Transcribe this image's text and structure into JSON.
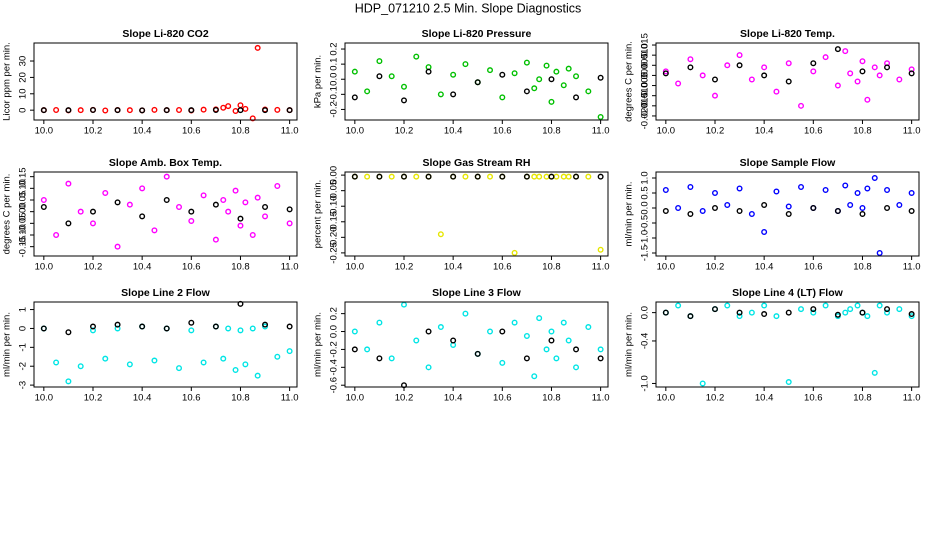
{
  "title": "HDP_071210  2.5 Min. Slope Diagnostics",
  "chart_data": [
    {
      "type": "scatter",
      "title": "Slope Li-820 CO2",
      "ylabel": "Licor ppm per min.",
      "xlim": [
        9.96,
        11.03
      ],
      "xticks": [
        {
          "value": 10,
          "label": "10.0"
        },
        10.2,
        10.4,
        10.6,
        10.8,
        {
          "value": 11,
          "label": "11.0"
        }
      ],
      "ylim": [
        -6,
        41
      ],
      "yticks": [
        0,
        10,
        20,
        30
      ],
      "series": [
        {
          "color": "#ff0000",
          "x": [
            10.0,
            10.05,
            10.1,
            10.15,
            10.2,
            10.25,
            10.3,
            10.35,
            10.4,
            10.45,
            10.5,
            10.55,
            10.6,
            10.65,
            10.7,
            10.73,
            10.75,
            10.78,
            10.8,
            10.82,
            10.85,
            10.87,
            10.9,
            10.95,
            11.0
          ],
          "values": [
            0,
            0.1,
            -0.1,
            0,
            0.2,
            -0.2,
            0.1,
            0,
            -0.1,
            0.2,
            0,
            0.1,
            -0.2,
            0.3,
            0.5,
            1.5,
            2.5,
            -0.5,
            3,
            0.8,
            -5,
            38,
            0.4,
            0.2,
            0
          ]
        },
        {
          "color": "#000000",
          "x": [
            10.0,
            10.1,
            10.2,
            10.3,
            10.4,
            10.5,
            10.6,
            10.7,
            10.8,
            10.9,
            11.0
          ],
          "values": [
            0,
            0,
            0.1,
            0,
            -0.1,
            0,
            0,
            0.1,
            0,
            0,
            0
          ]
        }
      ]
    },
    {
      "type": "scatter",
      "title": "Slope Li-820 Pressure",
      "ylabel": "kPa per min.",
      "xlim": [
        9.96,
        11.03
      ],
      "xticks": [
        {
          "value": 10,
          "label": "10.0"
        },
        10.2,
        10.4,
        10.6,
        10.8,
        {
          "value": 11,
          "label": "11.0"
        }
      ],
      "ylim": [
        -0.27,
        0.24
      ],
      "yticks": [
        -0.2,
        -0.1,
        {
          "value": 0,
          "label": "0.0"
        },
        0.1,
        0.2
      ],
      "series": [
        {
          "color": "#00c000",
          "x": [
            10.0,
            10.05,
            10.1,
            10.15,
            10.2,
            10.25,
            10.3,
            10.35,
            10.4,
            10.45,
            10.5,
            10.55,
            10.6,
            10.65,
            10.7,
            10.73,
            10.75,
            10.78,
            10.8,
            10.82,
            10.85,
            10.87,
            10.9,
            10.95,
            11.0
          ],
          "values": [
            0.05,
            -0.08,
            0.12,
            0.02,
            -0.05,
            0.15,
            0.08,
            -0.1,
            0.03,
            0.1,
            -0.02,
            0.06,
            -0.12,
            0.04,
            0.11,
            -0.06,
            0.0,
            0.09,
            -0.15,
            0.05,
            -0.04,
            0.07,
            0.02,
            -0.08,
            -0.25
          ]
        },
        {
          "color": "#000000",
          "x": [
            10.0,
            10.1,
            10.2,
            10.3,
            10.4,
            10.5,
            10.6,
            10.7,
            10.8,
            10.9,
            11.0
          ],
          "values": [
            -0.12,
            0.02,
            -0.14,
            0.05,
            -0.1,
            -0.02,
            0.03,
            -0.08,
            0.0,
            -0.12,
            0.01
          ]
        }
      ]
    },
    {
      "type": "scatter",
      "title": "Slope Li-820 Temp.",
      "ylabel": "degrees C per min.",
      "xlim": [
        9.96,
        11.03
      ],
      "xticks": [
        {
          "value": 10,
          "label": "10.0"
        },
        10.2,
        10.4,
        10.6,
        10.8,
        {
          "value": 11,
          "label": "11.0"
        }
      ],
      "ylim": [
        -0.022,
        0.016
      ],
      "yticks": [
        {
          "value": -0.02,
          "label": "-0.020"
        },
        -0.015,
        {
          "value": -0.01,
          "label": "-0.010"
        },
        -0.005,
        {
          "value": 0,
          "label": "0.000"
        },
        0.005,
        {
          "value": 0.01,
          "label": "0.010"
        },
        0.015
      ],
      "series": [
        {
          "color": "#ff00ff",
          "x": [
            10.0,
            10.05,
            10.1,
            10.15,
            10.2,
            10.25,
            10.3,
            10.35,
            10.4,
            10.45,
            10.5,
            10.55,
            10.6,
            10.65,
            10.7,
            10.73,
            10.75,
            10.78,
            10.8,
            10.82,
            10.85,
            10.87,
            10.9,
            10.95,
            11.0
          ],
          "values": [
            0.002,
            -0.004,
            0.008,
            0.0,
            -0.01,
            0.005,
            0.01,
            -0.002,
            0.004,
            -0.008,
            0.006,
            -0.015,
            0.002,
            0.009,
            -0.005,
            0.012,
            0.001,
            -0.003,
            0.007,
            -0.012,
            0.004,
            0.0,
            0.006,
            -0.002,
            0.003
          ]
        },
        {
          "color": "#000000",
          "x": [
            10.0,
            10.1,
            10.2,
            10.3,
            10.4,
            10.5,
            10.6,
            10.7,
            10.8,
            10.9,
            11.0
          ],
          "values": [
            0.001,
            0.004,
            -0.002,
            0.005,
            0.0,
            -0.003,
            0.006,
            0.013,
            0.002,
            0.004,
            0.001
          ]
        }
      ]
    },
    {
      "type": "scatter",
      "title": "Slope Amb. Box Temp.",
      "ylabel": "degrees C per min.",
      "xlim": [
        9.96,
        11.03
      ],
      "xticks": [
        {
          "value": 10,
          "label": "10.0"
        },
        10.2,
        10.4,
        10.6,
        10.8,
        {
          "value": 11,
          "label": "11.0"
        }
      ],
      "ylim": [
        -0.19,
        0.17
      ],
      "yticks": [
        -0.15,
        {
          "value": -0.1,
          "label": "-0.10"
        },
        -0.05,
        {
          "value": 0,
          "label": "0.00"
        },
        0.05,
        {
          "value": 0.1,
          "label": "0.10"
        },
        0.15
      ],
      "series": [
        {
          "color": "#ff00ff",
          "x": [
            10.0,
            10.05,
            10.1,
            10.15,
            10.2,
            10.25,
            10.3,
            10.35,
            10.4,
            10.45,
            10.5,
            10.55,
            10.6,
            10.65,
            10.7,
            10.73,
            10.75,
            10.78,
            10.8,
            10.82,
            10.85,
            10.87,
            10.9,
            10.95,
            11.0
          ],
          "values": [
            0.05,
            -0.1,
            0.12,
            0.0,
            -0.05,
            0.08,
            -0.15,
            0.03,
            0.1,
            -0.08,
            0.15,
            0.02,
            -0.04,
            0.07,
            -0.12,
            0.05,
            0.0,
            0.09,
            -0.06,
            0.04,
            -0.1,
            0.06,
            -0.02,
            0.11,
            -0.05
          ]
        },
        {
          "color": "#000000",
          "x": [
            10.0,
            10.1,
            10.2,
            10.3,
            10.4,
            10.5,
            10.6,
            10.7,
            10.8,
            10.9,
            11.0
          ],
          "values": [
            0.02,
            -0.05,
            0.0,
            0.04,
            -0.02,
            0.05,
            0.0,
            0.03,
            -0.03,
            0.02,
            0.01
          ]
        }
      ]
    },
    {
      "type": "scatter",
      "title": "Slope Gas Stream RH",
      "ylabel": "percent per min.",
      "xlim": [
        9.96,
        11.03
      ],
      "xticks": [
        {
          "value": 10,
          "label": "10.0"
        },
        10.2,
        10.4,
        10.6,
        10.8,
        {
          "value": 11,
          "label": "11.0"
        }
      ],
      "ylim": [
        -0.26,
        0.01
      ],
      "yticks": [
        -0.25,
        {
          "value": -0.2,
          "label": "-0.20"
        },
        -0.15,
        {
          "value": -0.1,
          "label": "-0.10"
        },
        -0.05,
        {
          "value": 0,
          "label": "0.00"
        }
      ],
      "series": [
        {
          "color": "#e6e600",
          "x": [
            10.0,
            10.05,
            10.1,
            10.15,
            10.2,
            10.25,
            10.3,
            10.35,
            10.4,
            10.45,
            10.5,
            10.55,
            10.6,
            10.65,
            10.7,
            10.73,
            10.75,
            10.78,
            10.8,
            10.82,
            10.85,
            10.87,
            10.9,
            10.95,
            11.0
          ],
          "values": [
            -0.005,
            -0.005,
            -0.005,
            -0.005,
            -0.005,
            -0.005,
            -0.005,
            -0.19,
            -0.005,
            -0.005,
            -0.005,
            -0.005,
            -0.005,
            -0.25,
            -0.005,
            -0.005,
            -0.005,
            -0.005,
            -0.005,
            -0.005,
            -0.005,
            -0.005,
            -0.005,
            -0.005,
            -0.24
          ]
        },
        {
          "color": "#000000",
          "x": [
            10.0,
            10.1,
            10.2,
            10.3,
            10.4,
            10.5,
            10.6,
            10.7,
            10.8,
            10.9,
            11.0
          ],
          "values": [
            -0.005,
            -0.005,
            -0.005,
            -0.005,
            -0.005,
            -0.005,
            -0.005,
            -0.005,
            -0.005,
            -0.005,
            -0.005
          ]
        }
      ]
    },
    {
      "type": "scatter",
      "title": "Slope Sample Flow",
      "ylabel": "ml/min per min.",
      "xlim": [
        9.96,
        11.03
      ],
      "xticks": [
        {
          "value": 10,
          "label": "10.0"
        },
        10.2,
        10.4,
        10.6,
        10.8,
        {
          "value": 11,
          "label": "11.0"
        }
      ],
      "ylim": [
        -1.6,
        1.2
      ],
      "yticks": [
        -1.5,
        {
          "value": -1,
          "label": "-1.0"
        },
        -0.5,
        {
          "value": 0,
          "label": "0.0"
        },
        0.5,
        {
          "value": 1,
          "label": "1.0"
        }
      ],
      "series": [
        {
          "color": "#0000ff",
          "x": [
            10.0,
            10.05,
            10.1,
            10.15,
            10.2,
            10.25,
            10.3,
            10.35,
            10.4,
            10.45,
            10.5,
            10.55,
            10.6,
            10.65,
            10.7,
            10.73,
            10.75,
            10.78,
            10.8,
            10.82,
            10.85,
            10.87,
            10.9,
            10.95,
            11.0
          ],
          "values": [
            0.6,
            0.0,
            0.7,
            -0.1,
            0.5,
            0.1,
            0.65,
            -0.2,
            -0.8,
            0.55,
            0.05,
            0.7,
            0.0,
            0.6,
            -0.1,
            0.75,
            0.1,
            0.5,
            0.0,
            0.65,
            1.0,
            -1.5,
            0.6,
            0.1,
            0.5
          ]
        },
        {
          "color": "#000000",
          "x": [
            10.0,
            10.1,
            10.2,
            10.3,
            10.4,
            10.5,
            10.6,
            10.7,
            10.8,
            10.9,
            11.0
          ],
          "values": [
            -0.1,
            -0.2,
            0.0,
            -0.1,
            0.1,
            -0.2,
            0.0,
            -0.1,
            -0.2,
            0.0,
            -0.1
          ]
        }
      ]
    },
    {
      "type": "scatter",
      "title": "Slope Line 2 Flow",
      "ylabel": "ml/min per min.",
      "xlim": [
        9.96,
        11.03
      ],
      "xticks": [
        {
          "value": 10,
          "label": "10.0"
        },
        10.2,
        10.4,
        10.6,
        10.8,
        {
          "value": 11,
          "label": "11.0"
        }
      ],
      "ylim": [
        -3.1,
        1.4
      ],
      "yticks": [
        -3,
        -2,
        -1,
        0,
        1
      ],
      "series": [
        {
          "color": "#00e5e5",
          "x": [
            10.0,
            10.05,
            10.1,
            10.15,
            10.2,
            10.25,
            10.3,
            10.35,
            10.4,
            10.45,
            10.5,
            10.55,
            10.6,
            10.65,
            10.7,
            10.73,
            10.75,
            10.78,
            10.8,
            10.82,
            10.85,
            10.87,
            10.9,
            10.95,
            11.0
          ],
          "values": [
            0.0,
            -1.8,
            -2.8,
            -2.0,
            -0.1,
            -1.6,
            0.0,
            -1.9,
            0.1,
            -1.7,
            0.0,
            -2.1,
            -0.1,
            -1.8,
            0.1,
            -1.6,
            0.0,
            -2.2,
            -0.1,
            -1.9,
            0.0,
            -2.5,
            0.1,
            -1.5,
            -1.2
          ]
        },
        {
          "color": "#000000",
          "x": [
            10.0,
            10.1,
            10.2,
            10.3,
            10.4,
            10.5,
            10.6,
            10.7,
            10.8,
            10.9,
            11.0
          ],
          "values": [
            0.0,
            -0.2,
            0.1,
            0.2,
            0.1,
            0.0,
            0.3,
            0.1,
            1.3,
            0.2,
            0.1
          ]
        }
      ]
    },
    {
      "type": "scatter",
      "title": "Slope Line 3 Flow",
      "ylabel": "ml/min per min.",
      "xlim": [
        9.96,
        11.03
      ],
      "xticks": [
        {
          "value": 10,
          "label": "10.0"
        },
        10.2,
        10.4,
        10.6,
        10.8,
        {
          "value": 11,
          "label": "11.0"
        }
      ],
      "ylim": [
        -0.62,
        0.33
      ],
      "yticks": [
        -0.6,
        -0.4,
        -0.2,
        {
          "value": 0,
          "label": "0.0"
        },
        0.2
      ],
      "series": [
        {
          "color": "#00e5e5",
          "x": [
            10.0,
            10.05,
            10.1,
            10.15,
            10.2,
            10.25,
            10.3,
            10.35,
            10.4,
            10.45,
            10.5,
            10.55,
            10.6,
            10.65,
            10.7,
            10.73,
            10.75,
            10.78,
            10.8,
            10.82,
            10.85,
            10.87,
            10.9,
            10.95,
            11.0
          ],
          "values": [
            0.0,
            -0.2,
            0.1,
            -0.3,
            0.3,
            -0.1,
            -0.4,
            0.05,
            -0.15,
            0.2,
            -0.25,
            0.0,
            -0.35,
            0.1,
            -0.05,
            -0.5,
            0.15,
            -0.2,
            0.0,
            -0.3,
            0.1,
            -0.1,
            -0.4,
            0.05,
            -0.2
          ]
        },
        {
          "color": "#000000",
          "x": [
            10.0,
            10.1,
            10.2,
            10.3,
            10.4,
            10.5,
            10.6,
            10.7,
            10.8,
            10.9,
            11.0
          ],
          "values": [
            -0.2,
            -0.3,
            -0.6,
            0.0,
            -0.1,
            -0.25,
            0.0,
            -0.3,
            -0.1,
            -0.2,
            -0.3
          ]
        }
      ]
    },
    {
      "type": "scatter",
      "title": "Slope Line 4 (LT) Flow",
      "ylabel": "ml/min per min.",
      "xlim": [
        9.96,
        11.03
      ],
      "xticks": [
        {
          "value": 10,
          "label": "10.0"
        },
        10.2,
        10.4,
        10.6,
        10.8,
        {
          "value": 11,
          "label": "11.0"
        }
      ],
      "ylim": [
        -1.05,
        0.15
      ],
      "yticks": [
        {
          "value": -1,
          "label": "-1.0"
        },
        -0.4,
        {
          "value": 0,
          "label": "0.0"
        }
      ],
      "series": [
        {
          "color": "#00e5e5",
          "x": [
            10.0,
            10.05,
            10.1,
            10.15,
            10.2,
            10.25,
            10.3,
            10.35,
            10.4,
            10.45,
            10.5,
            10.55,
            10.6,
            10.65,
            10.7,
            10.73,
            10.75,
            10.78,
            10.8,
            10.82,
            10.85,
            10.87,
            10.9,
            10.95,
            11.0
          ],
          "values": [
            0.0,
            0.1,
            -0.05,
            -1.0,
            0.05,
            0.1,
            -0.05,
            0.0,
            0.1,
            -0.05,
            -0.98,
            0.05,
            0.0,
            0.1,
            -0.05,
            0.0,
            0.05,
            0.1,
            0.0,
            -0.05,
            -0.85,
            0.1,
            0.0,
            0.05,
            -0.05
          ]
        },
        {
          "color": "#000000",
          "x": [
            10.0,
            10.1,
            10.2,
            10.3,
            10.4,
            10.5,
            10.6,
            10.7,
            10.8,
            10.9,
            11.0
          ],
          "values": [
            0.0,
            -0.05,
            0.05,
            0.0,
            -0.02,
            0.0,
            0.05,
            -0.03,
            0.0,
            0.05,
            -0.02
          ]
        }
      ]
    }
  ]
}
